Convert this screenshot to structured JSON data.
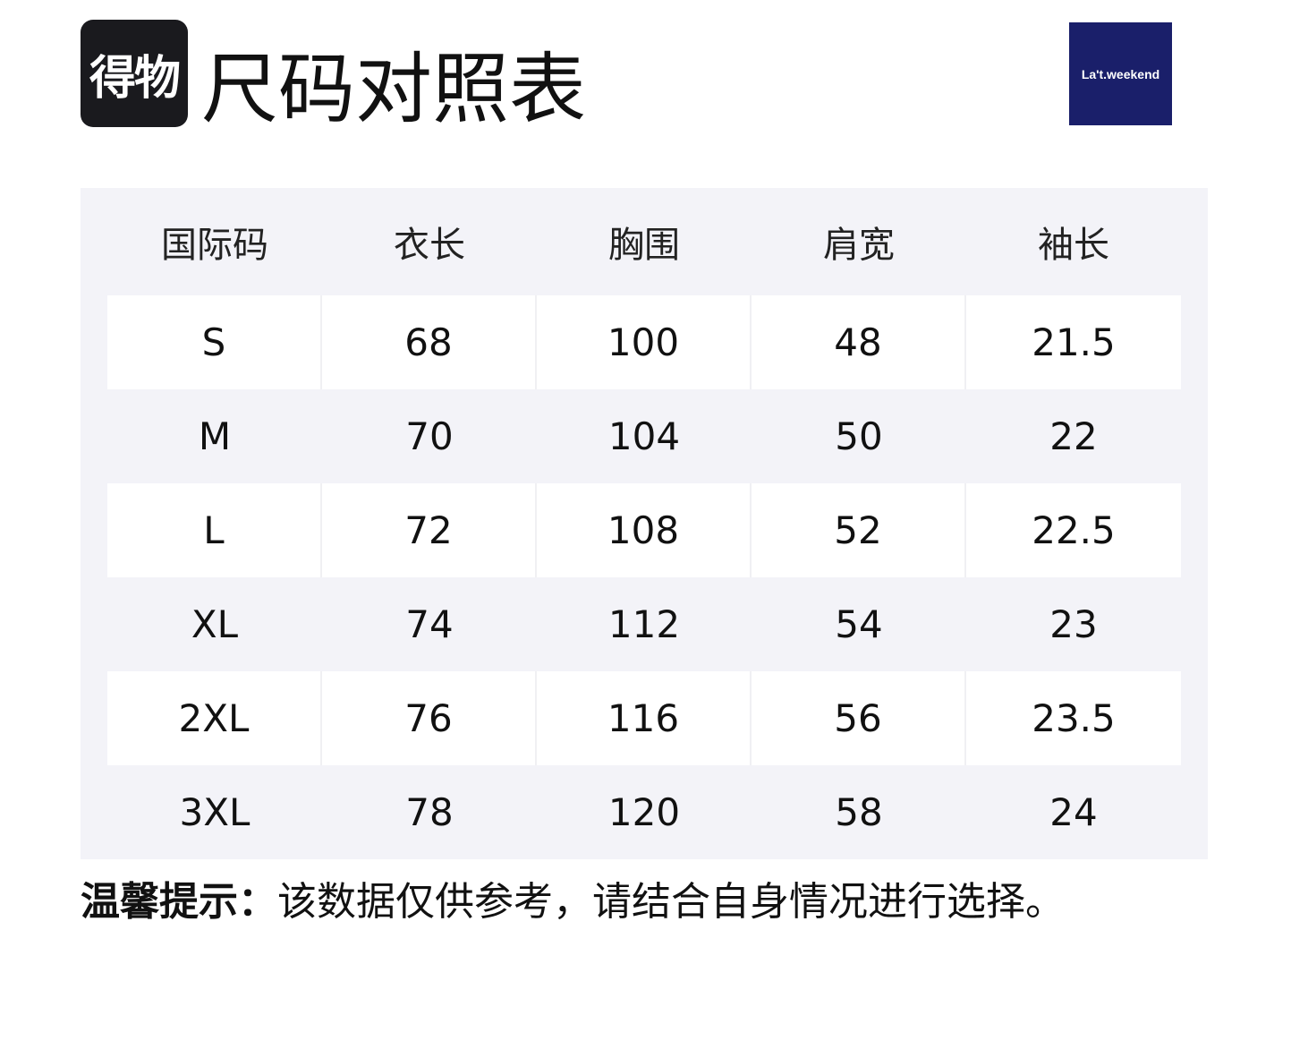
{
  "brand_logo": {
    "text": "得物"
  },
  "title": "尺码对照表",
  "partner_logo": {
    "text": "La't.weekend",
    "color": "#1a1f6a"
  },
  "table": {
    "headers": [
      "国际码",
      "衣长",
      "胸围",
      "肩宽",
      "袖长"
    ],
    "rows": [
      [
        "S",
        "68",
        "100",
        "48",
        "21.5"
      ],
      [
        "M",
        "70",
        "104",
        "50",
        "22"
      ],
      [
        "L",
        "72",
        "108",
        "52",
        "22.5"
      ],
      [
        "XL",
        "74",
        "112",
        "54",
        "23"
      ],
      [
        "2XL",
        "76",
        "116",
        "56",
        "23.5"
      ],
      [
        "3XL",
        "78",
        "120",
        "58",
        "24"
      ]
    ]
  },
  "note": {
    "label": "温馨提示：",
    "text": "该数据仅供参考，请结合自身情况进行选择。"
  }
}
